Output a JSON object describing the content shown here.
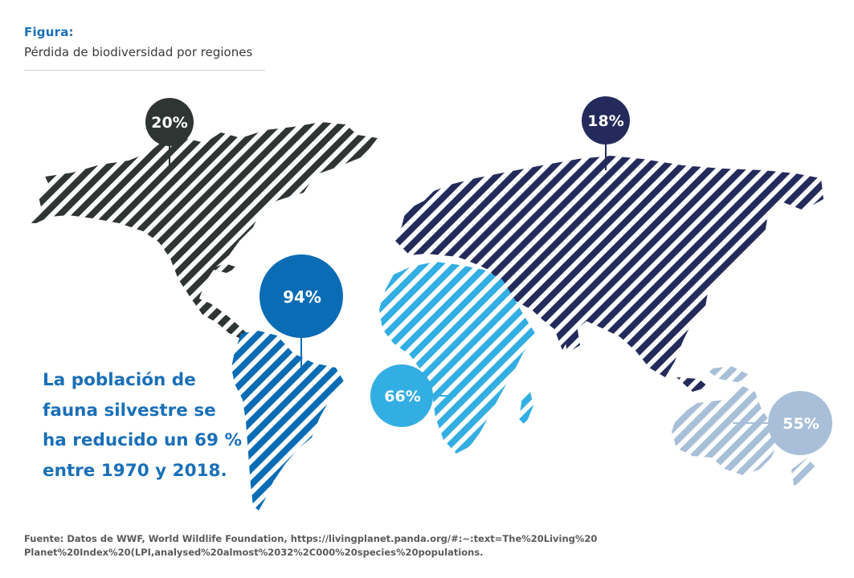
{
  "header": {
    "label": "Figura:",
    "title": "Pérdida de biodiversidad por regiones"
  },
  "regions": [
    {
      "id": "north-america",
      "value": "20%",
      "color": "#2e3533"
    },
    {
      "id": "europe-asia",
      "value": "18%",
      "color": "#242b5c"
    },
    {
      "id": "latin-america",
      "value": "94%",
      "color": "#0a6cb5"
    },
    {
      "id": "africa",
      "value": "66%",
      "color": "#33aee3"
    },
    {
      "id": "oceania",
      "value": "55%",
      "color": "#a9bfd9"
    }
  ],
  "headline": [
    "La población de",
    "fauna silvestre se",
    "ha reducido un 69 %",
    "entre 1970 y 2018."
  ],
  "source": [
    "Fuente: Datos de WWF, World Wildlife Foundation, https://livingplanet.panda.org/#:~:text=The%20Living%20",
    "Planet%20Index%20(LPI,analysed%20almost%2032%2C000%20species%20populations."
  ]
}
